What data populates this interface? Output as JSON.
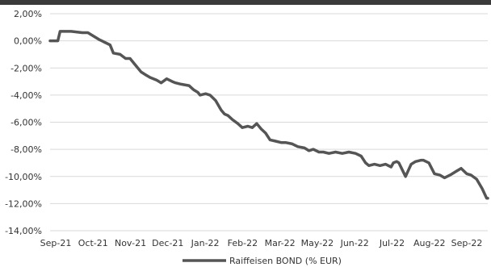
{
  "chart_data": {
    "type": "line",
    "title": "",
    "xlabel": "",
    "ylabel": "",
    "y_tick_labels": [
      "2,00%",
      "0,00%",
      "-2,00%",
      "-4,00%",
      "-6,00%",
      "-8,00%",
      "-10,00%",
      "-12,00%",
      "-14,00%"
    ],
    "y_tick_values": [
      2,
      0,
      -2,
      -4,
      -6,
      -8,
      -10,
      -12,
      -14
    ],
    "ylim": [
      -14,
      2
    ],
    "x_tick_labels": [
      "Sep-21",
      "Oct-21",
      "Nov-21",
      "Dec-21",
      "Jan-22",
      "Feb-22",
      "Mar-22",
      "May-22",
      "Jun-22",
      "Jul-22",
      "Aug-22",
      "Sep-22"
    ],
    "xlim": [
      "2021-09-01",
      "2022-09-30"
    ],
    "grid": "horizontal",
    "legend_position": "bottom",
    "colors": {
      "line": "#555555",
      "grid": "#d9d9d9",
      "top_band": "#3a3a3a"
    },
    "series": [
      {
        "name": "Raiffeisen BOND (% EUR)",
        "x": [
          "2021-09-01",
          "2021-09-08",
          "2021-09-10",
          "2021-09-20",
          "2021-09-30",
          "2021-10-05",
          "2021-10-15",
          "2021-10-25",
          "2021-10-28",
          "2021-11-03",
          "2021-11-08",
          "2021-11-12",
          "2021-11-18",
          "2021-11-22",
          "2021-11-26",
          "2021-11-30",
          "2021-12-06",
          "2021-12-10",
          "2021-12-15",
          "2021-12-20",
          "2021-12-23",
          "2021-12-28",
          "2022-01-04",
          "2022-01-08",
          "2022-01-12",
          "2022-01-14",
          "2022-01-19",
          "2022-01-23",
          "2022-01-28",
          "2022-02-02",
          "2022-02-05",
          "2022-02-08",
          "2022-02-12",
          "2022-02-17",
          "2022-02-21",
          "2022-02-26",
          "2022-03-02",
          "2022-03-06",
          "2022-03-10",
          "2022-03-14",
          "2022-03-18",
          "2022-03-23",
          "2022-03-28",
          "2022-04-01",
          "2022-04-07",
          "2022-04-12",
          "2022-04-18",
          "2022-04-22",
          "2022-04-26",
          "2022-05-01",
          "2022-05-05",
          "2022-05-10",
          "2022-05-16",
          "2022-05-22",
          "2022-05-28",
          "2022-06-03",
          "2022-06-08",
          "2022-06-12",
          "2022-06-15",
          "2022-06-20",
          "2022-06-25",
          "2022-06-30",
          "2022-07-05",
          "2022-07-07",
          "2022-07-10",
          "2022-07-12",
          "2022-07-18",
          "2022-07-23",
          "2022-07-27",
          "2022-08-01",
          "2022-08-03",
          "2022-08-08",
          "2022-08-13",
          "2022-08-18",
          "2022-08-22",
          "2022-08-27",
          "2022-09-02",
          "2022-09-06",
          "2022-09-11",
          "2022-09-15",
          "2022-09-20",
          "2022-09-25",
          "2022-09-29",
          "2022-09-30"
        ],
        "y": [
          0,
          0,
          0.7,
          0.7,
          0.6,
          0.6,
          0.1,
          -0.3,
          -0.9,
          -1.0,
          -1.3,
          -1.3,
          -1.9,
          -2.3,
          -2.5,
          -2.7,
          -2.9,
          -3.1,
          -2.8,
          -3.0,
          -3.1,
          -3.2,
          -3.3,
          -3.6,
          -3.8,
          -4.0,
          -3.9,
          -4.0,
          -4.4,
          -5.1,
          -5.4,
          -5.5,
          -5.8,
          -6.1,
          -6.4,
          -6.3,
          -6.4,
          -6.1,
          -6.5,
          -6.8,
          -7.3,
          -7.4,
          -7.5,
          -7.5,
          -7.6,
          -7.8,
          -7.9,
          -8.1,
          -8.0,
          -8.2,
          -8.2,
          -8.3,
          -8.2,
          -8.3,
          -8.2,
          -8.3,
          -8.5,
          -9.0,
          -9.2,
          -9.1,
          -9.2,
          -9.1,
          -9.3,
          -9.0,
          -8.9,
          -9.0,
          -10.0,
          -9.1,
          -8.9,
          -8.8,
          -8.8,
          -9.0,
          -9.8,
          -9.9,
          -10.1,
          -9.9,
          -9.6,
          -9.4,
          -9.8,
          -9.9,
          -10.2,
          -10.9,
          -11.6,
          -11.6
        ]
      }
    ]
  }
}
